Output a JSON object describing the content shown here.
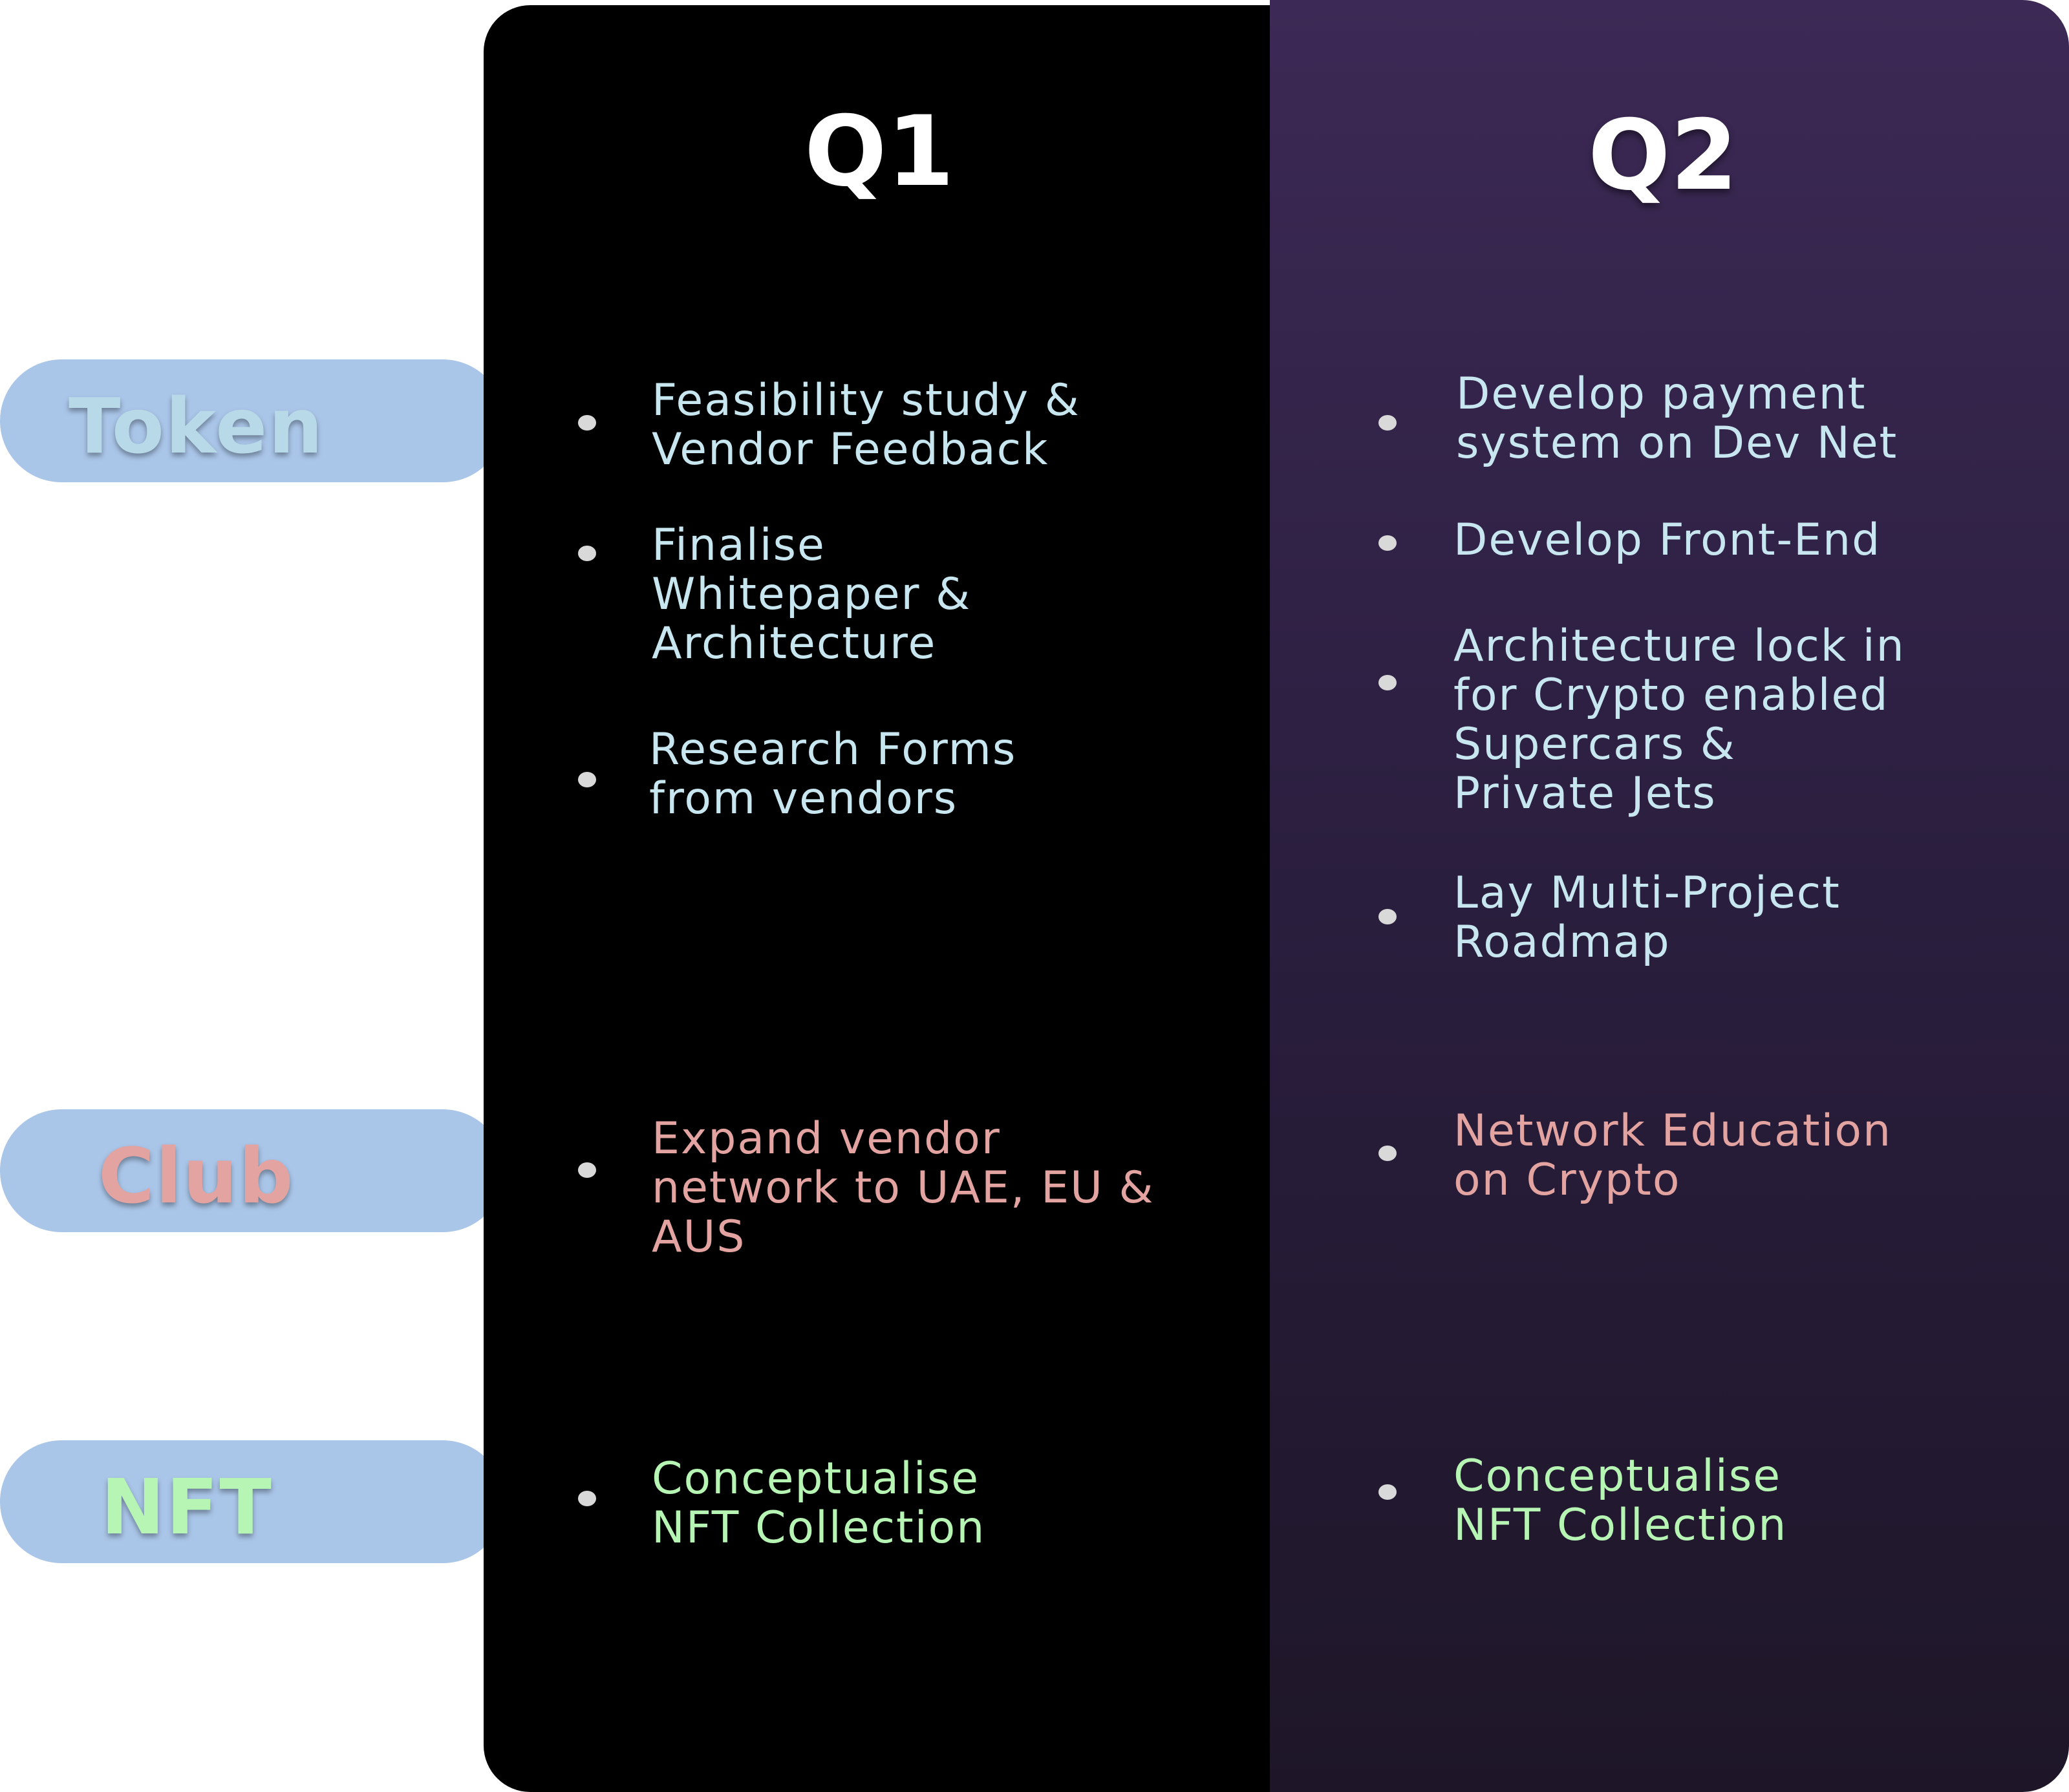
{
  "colors": {
    "token": "#b8d9e8",
    "club": "#e3a3a0",
    "nft": "#b6f5b4",
    "pill_bg": "#a9c5e8",
    "q1_bg": "#000000",
    "q2_bg": "#32243f"
  },
  "rows": {
    "token": "Token",
    "club": "Club",
    "nft": "NFT"
  },
  "q1": {
    "title": "Q1",
    "token_items": [
      "Feasibility study &\nVendor Feedback",
      "Finalise\nWhitepaper &\nArchitecture",
      "Research Forms\nfrom vendors"
    ],
    "club_items": [
      "Expand vendor\nnetwork to UAE, EU &\nAUS"
    ],
    "nft_items": [
      "Conceptualise\nNFT Collection"
    ]
  },
  "q2": {
    "title": "Q2",
    "token_items": [
      "Develop payment\nsystem on Dev Net",
      "Develop Front-End",
      "Architecture lock in\nfor Crypto enabled\nSupercars &\nPrivate Jets",
      "Lay Multi-Project\nRoadmap"
    ],
    "club_items": [
      "Network Education\non Crypto"
    ],
    "nft_items": [
      "Conceptualise\nNFT Collection"
    ]
  }
}
